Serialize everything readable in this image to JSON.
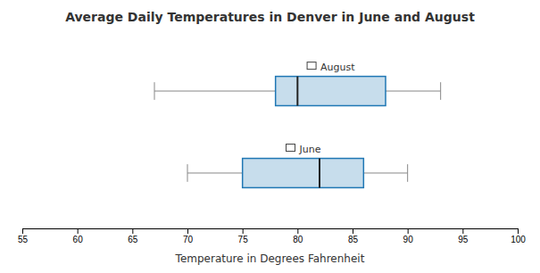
{
  "chart_data": {
    "type": "box",
    "orientation": "horizontal",
    "title": "Average Daily Temperatures in Denver in June and August",
    "xlabel": "Temperature  in Degrees  Fahrenheit",
    "series": [
      {
        "name": "August",
        "whisker_low": 67,
        "q1": 78,
        "median": 80,
        "q3": 88,
        "whisker_high": 93
      },
      {
        "name": "June",
        "whisker_low": 70,
        "q1": 75,
        "median": 82,
        "q3": 86,
        "whisker_high": 90
      }
    ],
    "xlim": [
      55,
      100
    ],
    "xticks": [
      55,
      60,
      65,
      70,
      75,
      80,
      85,
      90,
      95,
      100
    ],
    "grid": false,
    "tick_labels": "x"
  }
}
